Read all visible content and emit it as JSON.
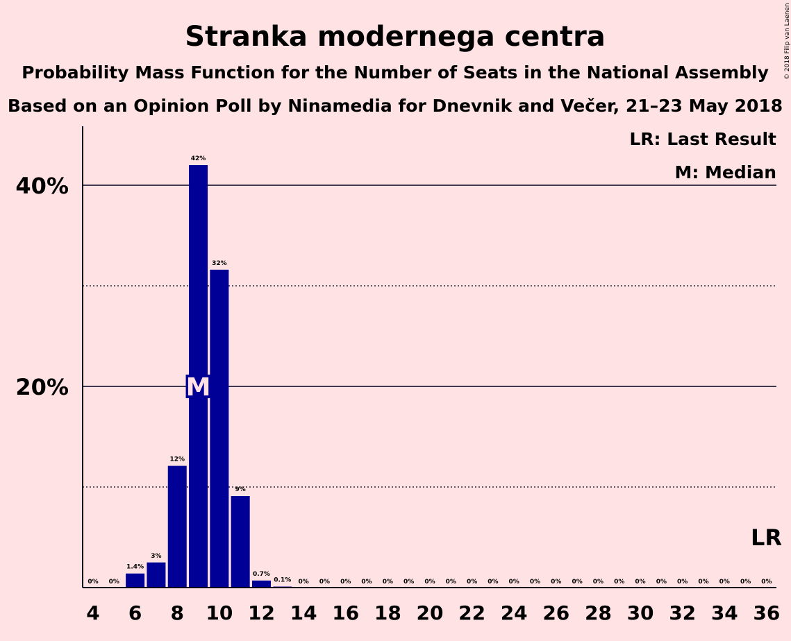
{
  "title": "Stranka modernega centra",
  "subtitle1": "Probability Mass Function for the Number of Seats in the National Assembly",
  "subtitle2": "Based on an Opinion Poll by Ninamedia for Dnevnik and Večer, 21–23 May 2018",
  "copyright": "© 2018 Filip van Laenen",
  "legend": {
    "last_result": "LR: Last Result",
    "median": "M: Median"
  },
  "markers": {
    "median_label": "M",
    "median_seat": 9,
    "last_result_label": "LR",
    "last_result_seat": 36
  },
  "colors": {
    "bar": "#000097",
    "background": "#ffe3e4",
    "text": "#00001a"
  },
  "chart_data": {
    "type": "bar",
    "xlabel": "",
    "ylabel": "",
    "ylim": [
      0,
      45
    ],
    "y_ticks": [
      {
        "value": 20,
        "label": "20%"
      },
      {
        "value": 40,
        "label": "40%"
      }
    ],
    "y_grid_solid": [
      20,
      40
    ],
    "y_grid_dotted": [
      10,
      30
    ],
    "x_tick_labels": [
      "4",
      "6",
      "8",
      "10",
      "12",
      "14",
      "16",
      "18",
      "20",
      "22",
      "24",
      "26",
      "28",
      "30",
      "32",
      "34",
      "36"
    ],
    "categories": [
      4,
      5,
      6,
      7,
      8,
      9,
      10,
      11,
      12,
      13,
      14,
      15,
      16,
      17,
      18,
      19,
      20,
      21,
      22,
      23,
      24,
      25,
      26,
      27,
      28,
      29,
      30,
      31,
      32,
      33,
      34,
      35,
      36
    ],
    "values": [
      0,
      0,
      1.4,
      2.5,
      12.1,
      42,
      31.6,
      9.1,
      0.7,
      0.1,
      0,
      0,
      0,
      0,
      0,
      0,
      0,
      0,
      0,
      0,
      0,
      0,
      0,
      0,
      0,
      0,
      0,
      0,
      0,
      0,
      0,
      0,
      0
    ],
    "value_labels": [
      "0%",
      "0%",
      "1.4%",
      "3%",
      "12%",
      "42%",
      "32%",
      "9%",
      "0.7%",
      "0.1%",
      "0%",
      "0%",
      "0%",
      "0%",
      "0%",
      "0%",
      "0%",
      "0%",
      "0%",
      "0%",
      "0%",
      "0%",
      "0%",
      "0%",
      "0%",
      "0%",
      "0%",
      "0%",
      "0%",
      "0%",
      "0%",
      "0%",
      "0%"
    ]
  }
}
